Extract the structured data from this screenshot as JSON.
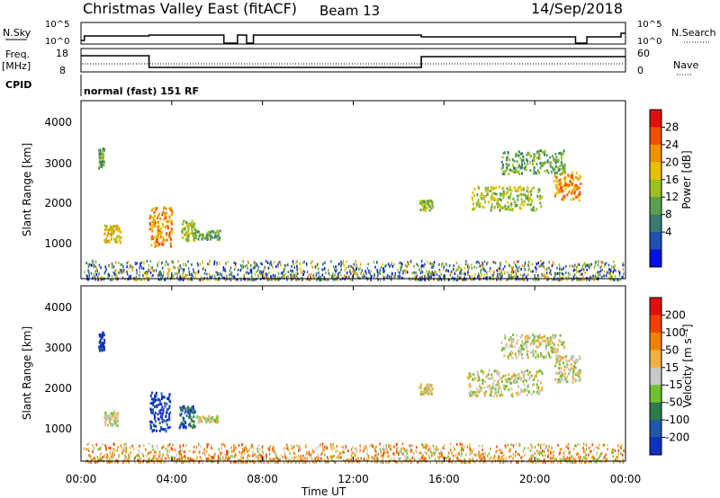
{
  "header": {
    "title": "Christmas Valley East (fitACF)",
    "beam": "Beam 13",
    "date": "14/Sep/2018"
  },
  "summary": {
    "nsky_label": "N.Sky",
    "nsky_ticks": [
      "10^5",
      "10^0"
    ],
    "nsearch_label": "N.Search",
    "nsearch_ticks": [
      "10^5",
      "10^0"
    ],
    "freq_label": "Freq.",
    "freq_unit": "[MHz]",
    "freq_ticks": [
      "18",
      "8"
    ],
    "nave_label": "Nave",
    "nave_ticks": [
      "60",
      "0"
    ],
    "cpid_label": "CPID",
    "cpid_text": "normal (fast) 151 RF"
  },
  "x_axis": {
    "ticks": [
      "00:00",
      "04:00",
      "08:00",
      "12:00",
      "16:00",
      "20:00",
      "00:00"
    ],
    "label": "Time UT"
  },
  "power_panel": {
    "ylabel": "Slant Range [km]",
    "yticks": [
      "4000",
      "3000",
      "2000",
      "1000"
    ],
    "colorbar_label": "Power [dB]",
    "colorbar_ticks": [
      "28",
      "24",
      "20",
      "16",
      "12",
      "8",
      "4"
    ],
    "colors": [
      "#0010e0",
      "#2050b0",
      "#3a7a70",
      "#58a050",
      "#9cc020",
      "#e8c000",
      "#f09000",
      "#f05000",
      "#e01010"
    ]
  },
  "velocity_panel": {
    "ylabel": "Slant Range [km]",
    "yticks": [
      "4000",
      "3000",
      "2000",
      "1000"
    ],
    "colorbar_label": "Velocity [m s⁻¹]",
    "colorbar_ticks": [
      "200",
      "100",
      "50",
      "15",
      "-15",
      "-50",
      "-100",
      "-200"
    ],
    "colors": [
      "#1030c0",
      "#2058a8",
      "#2e7a48",
      "#70c030",
      "#c8c8c8",
      "#f0b040",
      "#f08000",
      "#f04000",
      "#e01010"
    ]
  },
  "chart_data": [
    {
      "type": "heatmap",
      "name": "Power",
      "x_range_hours": [
        0,
        24
      ],
      "y_range_km": [
        180,
        4600
      ],
      "color_range_db": [
        0,
        30
      ],
      "blobs": [
        {
          "t0": 0.75,
          "t1": 1.0,
          "r0": 2950,
          "r1": 3450,
          "level": 3
        },
        {
          "t0": 1.0,
          "t1": 1.75,
          "r0": 1100,
          "r1": 1550,
          "level": 5
        },
        {
          "t0": 3.0,
          "t1": 4.0,
          "r0": 1000,
          "r1": 2000,
          "level": 6
        },
        {
          "t0": 4.4,
          "t1": 5.0,
          "r0": 1150,
          "r1": 1650,
          "level": 4
        },
        {
          "t0": 5.0,
          "t1": 6.1,
          "r0": 1180,
          "r1": 1400,
          "level": 3
        },
        {
          "t0": 14.9,
          "t1": 15.5,
          "r0": 1900,
          "r1": 2150,
          "level": 4
        },
        {
          "t0": 17.2,
          "t1": 20.3,
          "r0": 1900,
          "r1": 2500,
          "level": 4
        },
        {
          "t0": 18.5,
          "t1": 21.3,
          "r0": 2800,
          "r1": 3400,
          "level": 3
        },
        {
          "t0": 20.8,
          "t1": 22.0,
          "r0": 2150,
          "r1": 2850,
          "level": 6
        }
      ],
      "ground_scatter": {
        "t0": 0.1,
        "t1": 23.9,
        "r0": 180,
        "r1": 650
      }
    },
    {
      "type": "heatmap",
      "name": "Velocity",
      "x_range_hours": [
        0,
        24
      ],
      "y_range_km": [
        180,
        4600
      ],
      "color_range_ms": [
        -250,
        250
      ],
      "blobs": [
        {
          "t0": 0.75,
          "t1": 1.0,
          "r0": 3000,
          "r1": 3450,
          "level": 0
        },
        {
          "t0": 1.0,
          "t1": 1.6,
          "r0": 1100,
          "r1": 1450,
          "level": 4
        },
        {
          "t0": 3.0,
          "t1": 3.9,
          "r0": 950,
          "r1": 1950,
          "level": 0
        },
        {
          "t0": 4.3,
          "t1": 5.0,
          "r0": 1050,
          "r1": 1600,
          "level": 1
        },
        {
          "t0": 5.0,
          "t1": 6.0,
          "r0": 1180,
          "r1": 1350,
          "level": 4
        },
        {
          "t0": 14.9,
          "t1": 15.5,
          "r0": 1900,
          "r1": 2150,
          "level": 4
        },
        {
          "t0": 17.0,
          "t1": 20.3,
          "r0": 1850,
          "r1": 2500,
          "level": 4
        },
        {
          "t0": 18.5,
          "t1": 21.3,
          "r0": 2800,
          "r1": 3400,
          "level": 4
        },
        {
          "t0": 20.8,
          "t1": 22.0,
          "r0": 2200,
          "r1": 2850,
          "level": 4
        }
      ],
      "ground_scatter": {
        "t0": 0.1,
        "t1": 23.9,
        "r0": 180,
        "r1": 650
      }
    }
  ]
}
